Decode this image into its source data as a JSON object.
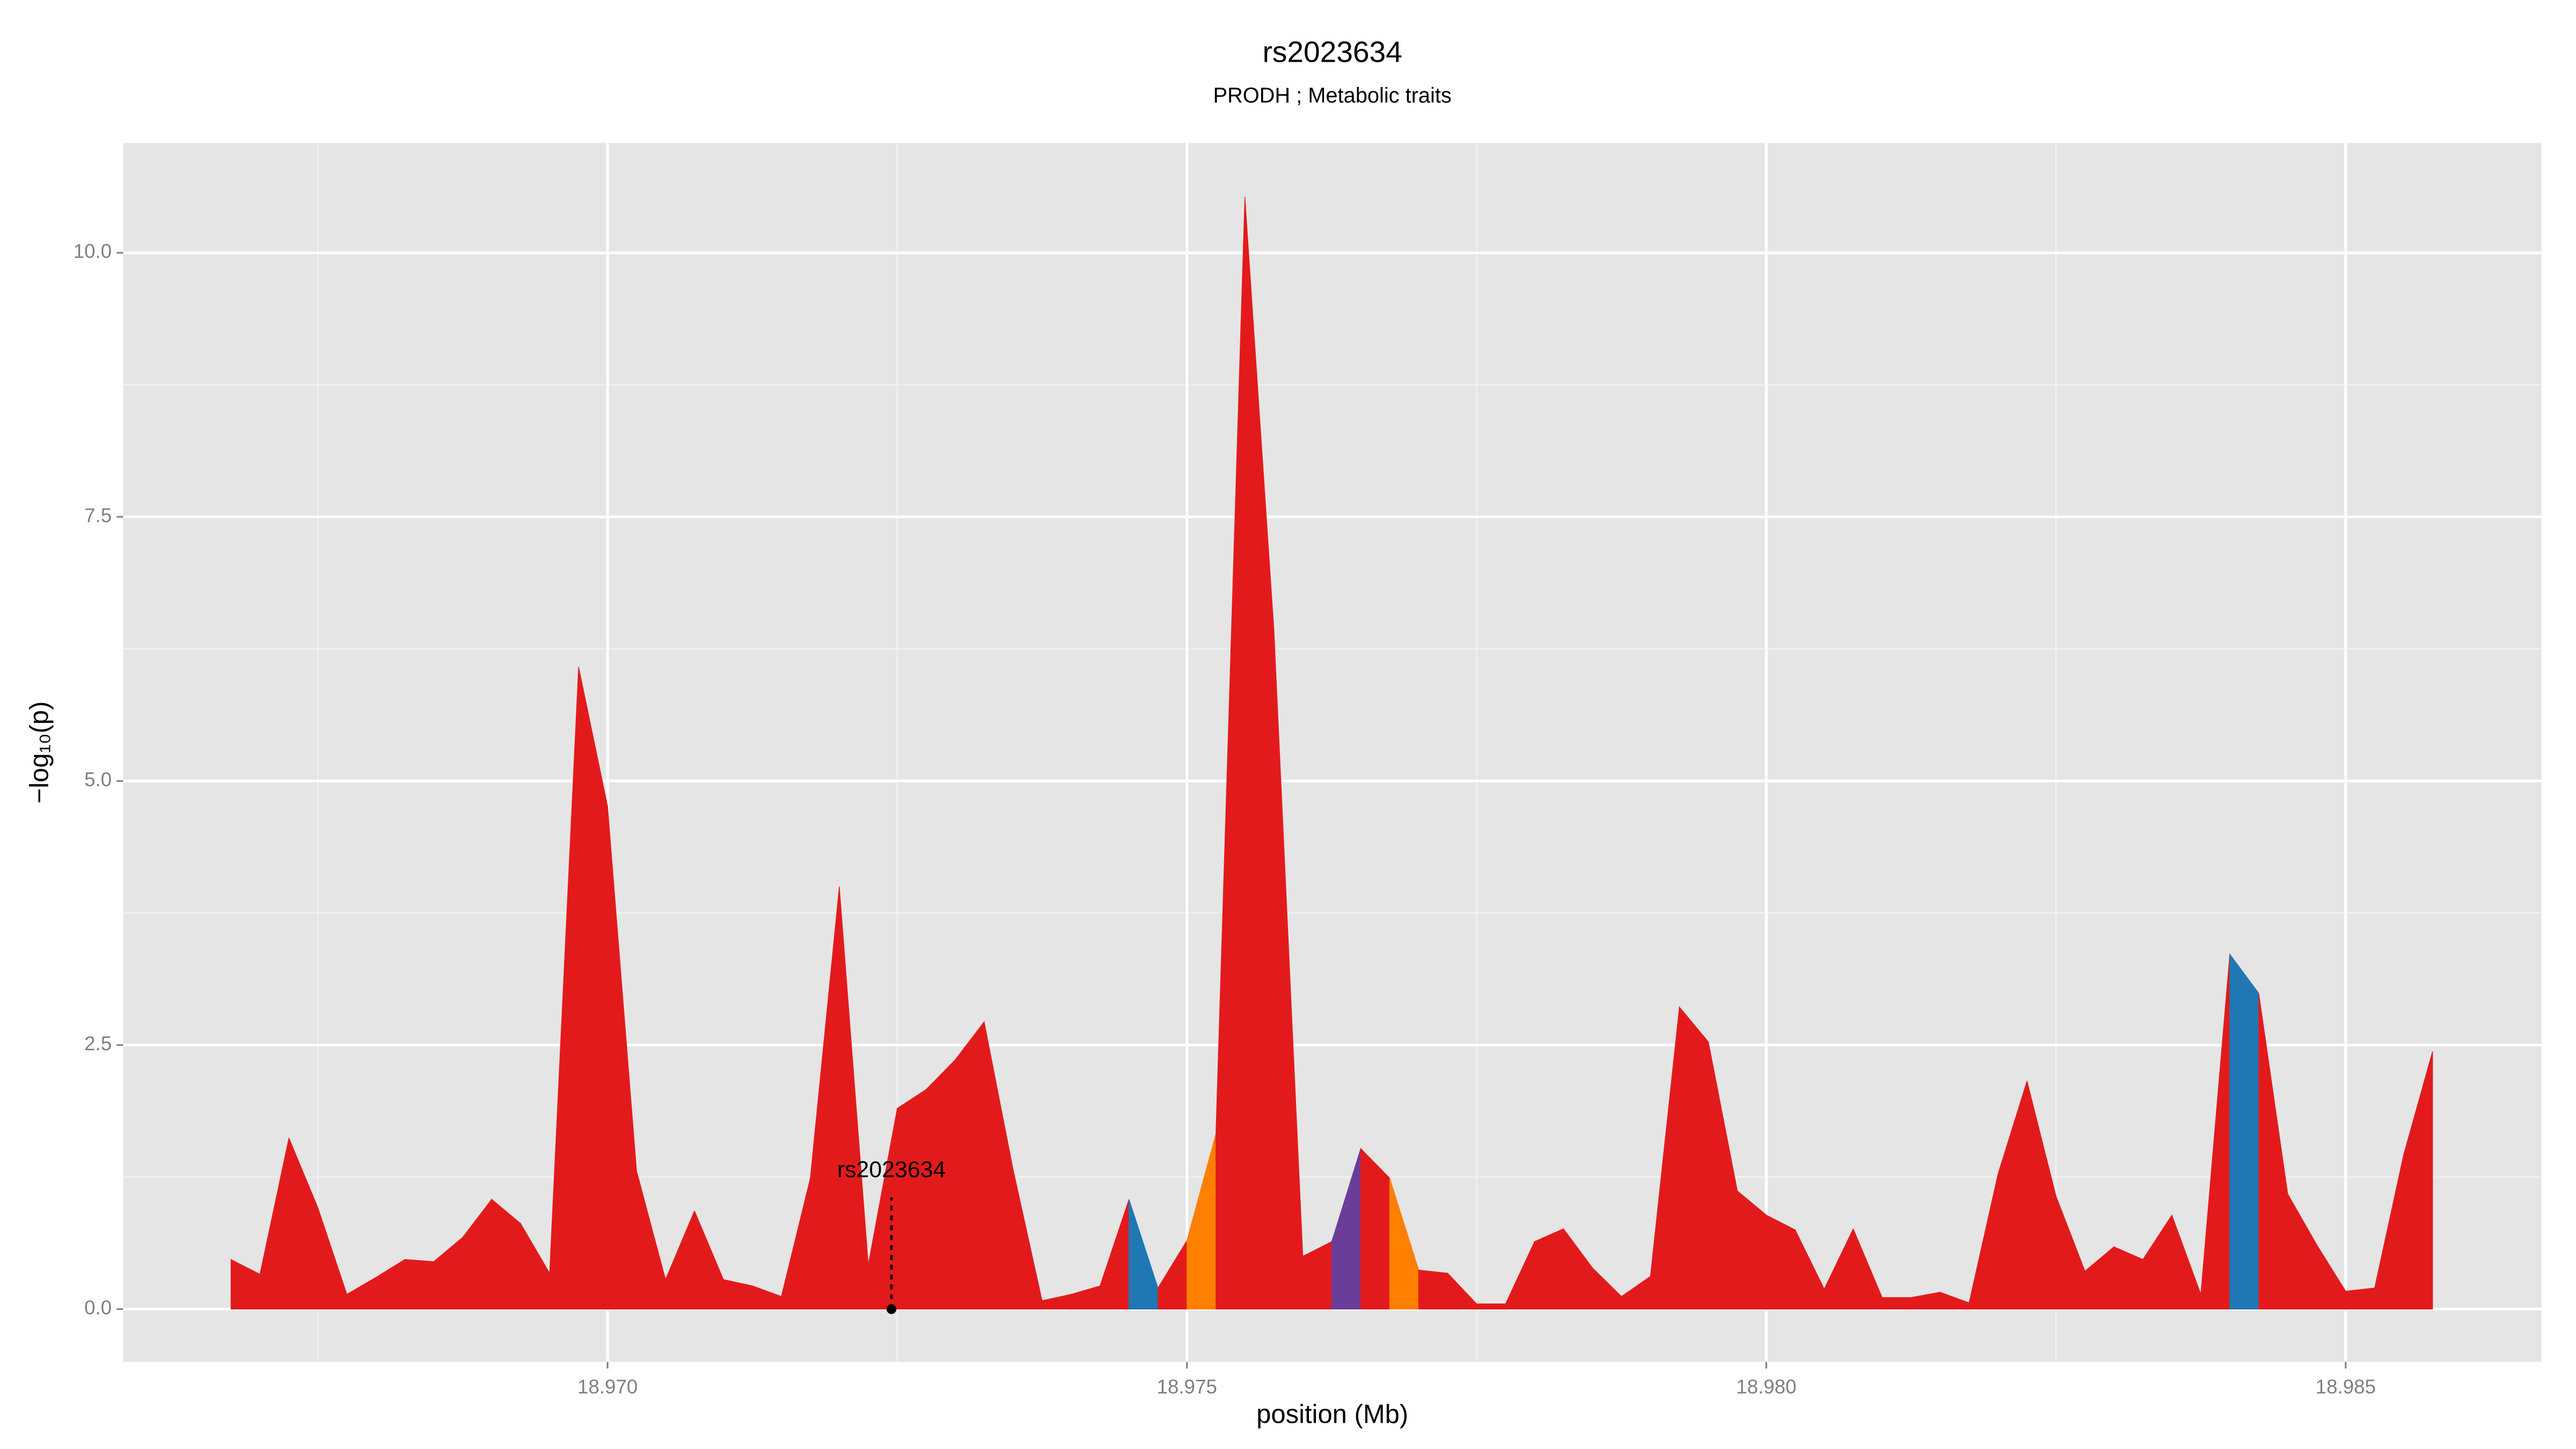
{
  "chart_data": {
    "type": "area",
    "title": "rs2023634",
    "subtitle": "PRODH ; Metabolic traits",
    "x_label": "position (Mb)",
    "y_label": "−log₁₀(p)",
    "x": [
      18.96675,
      18.967,
      18.96725,
      18.9675,
      18.96775,
      18.968,
      18.96825,
      18.9685,
      18.96875,
      18.969,
      18.96925,
      18.9695,
      18.96975,
      18.97,
      18.97025,
      18.9705,
      18.97075,
      18.971,
      18.97125,
      18.9715,
      18.97175,
      18.972,
      18.97225,
      18.9725,
      18.97275,
      18.973,
      18.97325,
      18.9735,
      18.97375,
      18.974,
      18.97425,
      18.9745,
      18.97475,
      18.975,
      18.97525,
      18.9755,
      18.97575,
      18.976,
      18.97625,
      18.9765,
      18.97675,
      18.977,
      18.97725,
      18.9775,
      18.97775,
      18.978,
      18.97825,
      18.9785,
      18.97875,
      18.979,
      18.97925,
      18.9795,
      18.97975,
      18.98,
      18.98025,
      18.9805,
      18.98075,
      18.981,
      18.98125,
      18.9815,
      18.98175,
      18.982,
      18.98225,
      18.9825,
      18.98275,
      18.983,
      18.98325,
      18.9835,
      18.98375,
      18.984,
      18.98425,
      18.9845,
      18.98475,
      18.985,
      18.98525,
      18.9855,
      18.98575
    ],
    "values": [
      0.47,
      0.33,
      1.62,
      0.96,
      0.14,
      0.3,
      0.47,
      0.45,
      0.68,
      1.04,
      0.81,
      0.34,
      6.08,
      4.76,
      1.31,
      0.28,
      0.93,
      0.28,
      0.22,
      0.12,
      1.24,
      4.0,
      0.42,
      1.9,
      2.08,
      2.36,
      2.72,
      1.32,
      0.08,
      0.14,
      0.22,
      1.04,
      0.2,
      0.65,
      1.66,
      10.53,
      6.44,
      0.5,
      0.64,
      1.52,
      1.24,
      0.37,
      0.34,
      0.05,
      0.05,
      0.64,
      0.76,
      0.39,
      0.12,
      0.31,
      2.86,
      2.53,
      1.12,
      0.89,
      0.75,
      0.19,
      0.76,
      0.11,
      0.11,
      0.16,
      0.06,
      1.28,
      2.16,
      1.07,
      0.36,
      0.59,
      0.47,
      0.89,
      0.14,
      3.36,
      2.99,
      1.09,
      0.61,
      0.17,
      0.2,
      1.46,
      2.44
    ],
    "segment_colors": [
      "#e31a1c",
      "#e31a1c",
      "#e31a1c",
      "#e31a1c",
      "#e31a1c",
      "#e31a1c",
      "#e31a1c",
      "#e31a1c",
      "#e31a1c",
      "#e31a1c",
      "#e31a1c",
      "#e31a1c",
      "#e31a1c",
      "#e31a1c",
      "#e31a1c",
      "#e31a1c",
      "#e31a1c",
      "#e31a1c",
      "#e31a1c",
      "#e31a1c",
      "#e31a1c",
      "#e31a1c",
      "#e31a1c",
      "#e31a1c",
      "#e31a1c",
      "#e31a1c",
      "#e31a1c",
      "#e31a1c",
      "#e31a1c",
      "#e31a1c",
      "#e31a1c",
      "#1f78b4",
      "#e31a1c",
      "#ff7f00",
      "#e31a1c",
      "#e31a1c",
      "#e31a1c",
      "#e31a1c",
      "#6a3d9a",
      "#e31a1c",
      "#ff7f00",
      "#e31a1c",
      "#e31a1c",
      "#e31a1c",
      "#e31a1c",
      "#e31a1c",
      "#e31a1c",
      "#e31a1c",
      "#e31a1c",
      "#e31a1c",
      "#e31a1c",
      "#e31a1c",
      "#e31a1c",
      "#e31a1c",
      "#e31a1c",
      "#e31a1c",
      "#e31a1c",
      "#e31a1c",
      "#e31a1c",
      "#e31a1c",
      "#e31a1c",
      "#e31a1c",
      "#e31a1c",
      "#e31a1c",
      "#e31a1c",
      "#e31a1c",
      "#e31a1c",
      "#e31a1c",
      "#e31a1c",
      "#1f78b4",
      "#e31a1c",
      "#e31a1c",
      "#e31a1c",
      "#e31a1c",
      "#e31a1c",
      "#e31a1c"
    ],
    "annotation": {
      "text": "rs2023634",
      "x": 18.97245,
      "y": 0
    },
    "xlim": [
      18.96582,
      18.98669
    ],
    "ylim": [
      -0.5,
      11.04
    ],
    "xticks": [
      {
        "value": 18.97,
        "label": "18.970"
      },
      {
        "value": 18.975,
        "label": "18.975"
      },
      {
        "value": 18.98,
        "label": "18.980"
      },
      {
        "value": 18.985,
        "label": "18.985"
      }
    ],
    "yticks": [
      {
        "value": 0,
        "label": "0.0"
      },
      {
        "value": 2.5,
        "label": "2.5"
      },
      {
        "value": 5,
        "label": "5.0"
      },
      {
        "value": 7.5,
        "label": "7.5"
      },
      {
        "value": 10,
        "label": "10.0"
      }
    ],
    "minor_xticks": [
      18.9675,
      18.9725,
      18.9775,
      18.9825
    ],
    "minor_yticks": [
      1.25,
      3.75,
      6.25,
      8.75
    ],
    "grid": true
  }
}
